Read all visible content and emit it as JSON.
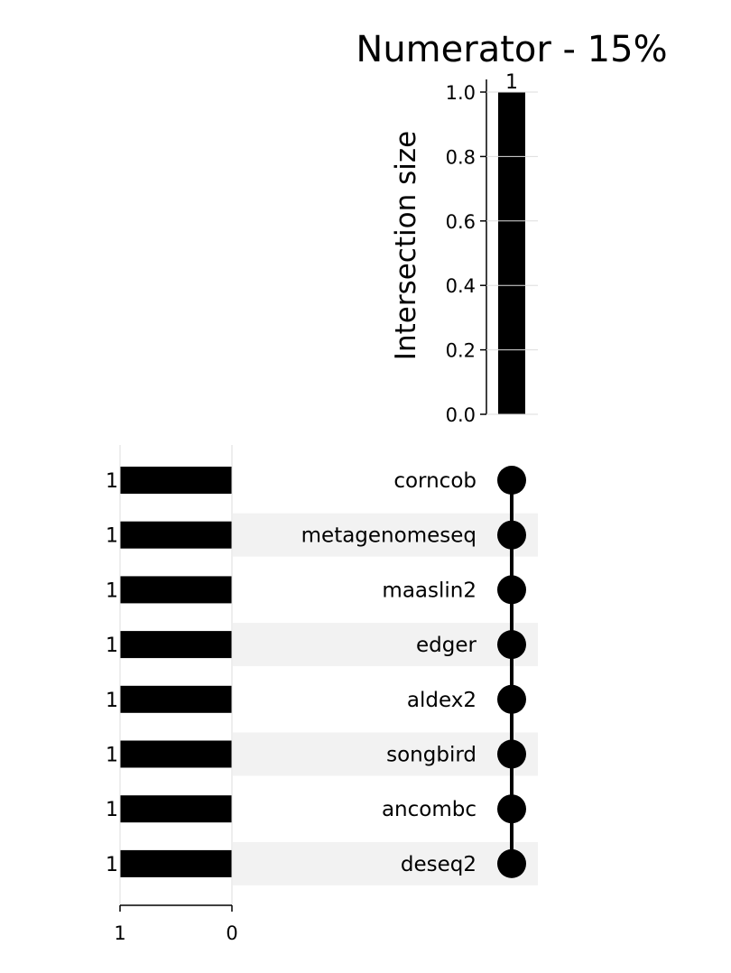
{
  "chart_data": {
    "type": "upset",
    "title": "Numerator - 15%",
    "intersection_axis": {
      "label": "Intersection size",
      "ylim": [
        0,
        1
      ],
      "ticks": [
        "0.0",
        "0.2",
        "0.4",
        "0.6",
        "0.8",
        "1.0"
      ],
      "tick_values": [
        0,
        0.2,
        0.4,
        0.6,
        0.8,
        1.0
      ]
    },
    "intersections": [
      {
        "size": 1,
        "label": "1",
        "members": [
          "corncob",
          "metagenomeseq",
          "maaslin2",
          "edger",
          "aldex2",
          "songbird",
          "ancombc",
          "deseq2"
        ]
      }
    ],
    "sets": [
      {
        "name": "corncob",
        "size": 1,
        "label": "1"
      },
      {
        "name": "metagenomeseq",
        "size": 1,
        "label": "1"
      },
      {
        "name": "maaslin2",
        "size": 1,
        "label": "1"
      },
      {
        "name": "edger",
        "size": 1,
        "label": "1"
      },
      {
        "name": "aldex2",
        "size": 1,
        "label": "1"
      },
      {
        "name": "songbird",
        "size": 1,
        "label": "1"
      },
      {
        "name": "ancombc",
        "size": 1,
        "label": "1"
      },
      {
        "name": "deseq2",
        "size": 1,
        "label": "1"
      }
    ],
    "set_size_axis": {
      "xlim": [
        1,
        0
      ],
      "ticks": [
        "1",
        "0"
      ],
      "tick_values": [
        1,
        0
      ]
    },
    "colors": {
      "bar": "#000000",
      "dot": "#000000",
      "shade": "#f2f2f2"
    }
  }
}
